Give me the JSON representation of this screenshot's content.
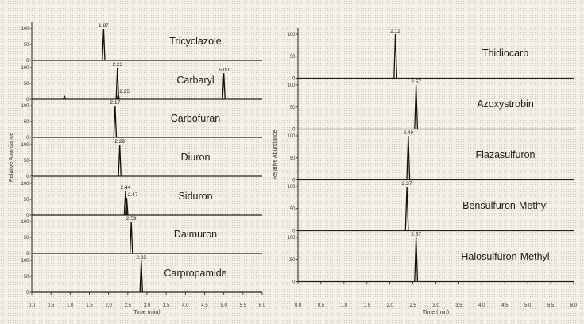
{
  "chart_data": [
    {
      "type": "line",
      "xlabel": "Time (min)",
      "ylabel": "Relative Abundance",
      "xlim": [
        0.0,
        6.0
      ],
      "x_ticks": [
        "0.0",
        "0.5",
        "1.0",
        "1.5",
        "2.0",
        "2.5",
        "3.0",
        "3.5",
        "4.0",
        "4.5",
        "5.0",
        "5.5",
        "6.0"
      ],
      "y_ticks": [
        "0",
        "50",
        "100"
      ],
      "ylim": [
        0,
        100
      ],
      "panels": [
        {
          "compound": "Tricyclazole",
          "peaks": [
            {
              "rt": 1.87,
              "height": 100,
              "label": "1.87"
            }
          ]
        },
        {
          "compound": "Carbaryl",
          "peaks": [
            {
              "rt": 2.23,
              "height": 100,
              "label": "2.23"
            },
            {
              "rt": 2.25,
              "height": 15,
              "label": "2.25"
            },
            {
              "rt": 5.0,
              "height": 82,
              "label": "5.00"
            },
            {
              "rt": 0.85,
              "height": 9,
              "label": ""
            }
          ]
        },
        {
          "compound": "Carbofuran",
          "peaks": [
            {
              "rt": 2.17,
              "height": 100,
              "label": "2.17"
            }
          ]
        },
        {
          "compound": "Diuron",
          "peaks": [
            {
              "rt": 2.29,
              "height": 100,
              "label": "2.29"
            }
          ]
        },
        {
          "compound": "Siduron",
          "peaks": [
            {
              "rt": 2.44,
              "height": 78,
              "label": "2.44"
            },
            {
              "rt": 2.47,
              "height": 55,
              "label": "2.47"
            }
          ]
        },
        {
          "compound": "Daimuron",
          "peaks": [
            {
              "rt": 2.59,
              "height": 100,
              "label": "2.59"
            }
          ]
        },
        {
          "compound": "Carpropamide",
          "peaks": [
            {
              "rt": 2.85,
              "height": 100,
              "label": "2.85"
            }
          ]
        }
      ]
    },
    {
      "type": "line",
      "xlabel": "Time (min)",
      "ylabel": "Relative Abundance",
      "xlim": [
        0.0,
        6.0
      ],
      "x_ticks": [
        "0.0",
        "0.5",
        "1.0",
        "1.5",
        "2.0",
        "2.5",
        "3.0",
        "3.5",
        "4.0",
        "4.5",
        "5.0",
        "5.5",
        "6.0"
      ],
      "y_ticks": [
        "0",
        "50",
        "100"
      ],
      "ylim": [
        0,
        100
      ],
      "panels": [
        {
          "compound": "Thidiocarb",
          "peaks": [
            {
              "rt": 2.12,
              "height": 100,
              "label": "2.12"
            }
          ]
        },
        {
          "compound": "Azoxystrobin",
          "peaks": [
            {
              "rt": 2.57,
              "height": 100,
              "label": "2.57"
            }
          ]
        },
        {
          "compound": "Flazasulfuron",
          "peaks": [
            {
              "rt": 2.4,
              "height": 100,
              "label": "2.40"
            }
          ]
        },
        {
          "compound": "Bensulfuron-Methyl",
          "peaks": [
            {
              "rt": 2.37,
              "height": 100,
              "label": "2.37"
            }
          ]
        },
        {
          "compound": "Halosulfuron-Methyl",
          "peaks": [
            {
              "rt": 2.57,
              "height": 100,
              "label": "2.57"
            }
          ]
        }
      ]
    }
  ]
}
